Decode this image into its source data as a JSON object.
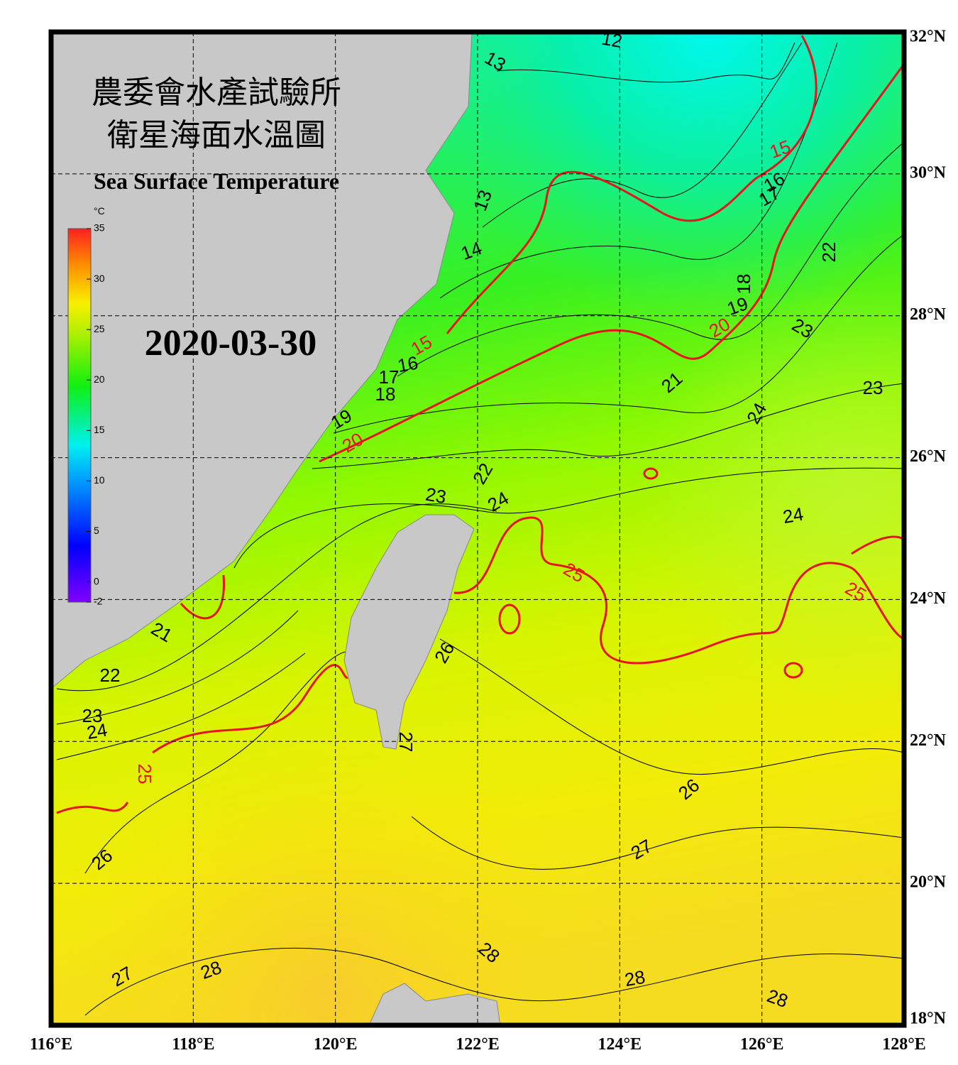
{
  "header": {
    "title_zh": [
      "農委會水產試驗所",
      "衛星海面水溫圖"
    ],
    "title_en": "Sea Surface Temperature",
    "date": "2020-03-30"
  },
  "colorbar": {
    "unit": "°C",
    "lim": [
      -2,
      35
    ],
    "ticks": [
      35,
      30,
      25,
      20,
      15,
      10,
      5,
      0,
      -2
    ]
  },
  "map": {
    "xlim": [
      116,
      128
    ],
    "ylim": [
      18,
      32
    ],
    "xticks": [
      {
        "value": 116,
        "label": "116°E"
      },
      {
        "value": 118,
        "label": "118°E"
      },
      {
        "value": 120,
        "label": "120°E"
      },
      {
        "value": 122,
        "label": "122°E"
      },
      {
        "value": 124,
        "label": "124°E"
      },
      {
        "value": 126,
        "label": "126°E"
      },
      {
        "value": 128,
        "label": "128°E"
      }
    ],
    "yticks": [
      {
        "value": 18,
        "label": "18°N"
      },
      {
        "value": 20,
        "label": "20°N"
      },
      {
        "value": 22,
        "label": "22°N"
      },
      {
        "value": 24,
        "label": "24°N"
      },
      {
        "value": 26,
        "label": "26°N"
      },
      {
        "value": 28,
        "label": "28°N"
      },
      {
        "value": 30,
        "label": "30°N"
      },
      {
        "value": 32,
        "label": "32°N"
      }
    ],
    "grid": true,
    "contour_labels": [
      12,
      13,
      13,
      14,
      15,
      16,
      17,
      18,
      19,
      20,
      15,
      16,
      17,
      18,
      19,
      20,
      21,
      22,
      23,
      23,
      24,
      22,
      23,
      24,
      25,
      25,
      24,
      21,
      22,
      23,
      24,
      25,
      26,
      26,
      27,
      26,
      27,
      27,
      28,
      28,
      28,
      28
    ],
    "major_interval": 5,
    "major_color": "#e8141c",
    "minor_color": "#000000"
  }
}
